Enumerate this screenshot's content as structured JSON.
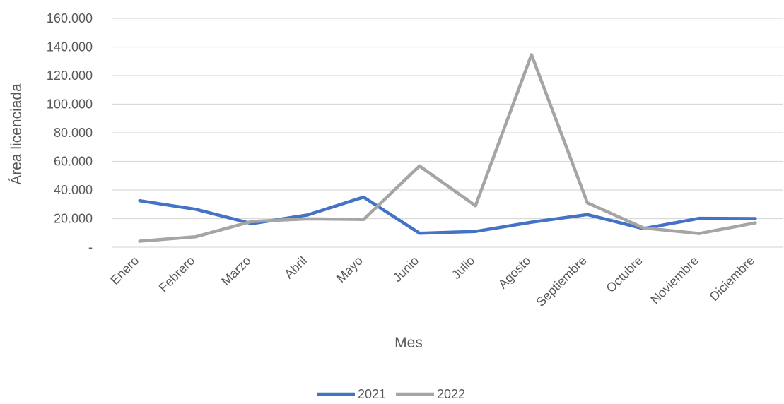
{
  "chart_data": {
    "type": "line",
    "title": "",
    "xlabel": "Mes",
    "ylabel": "Área licenciada",
    "categories": [
      "Enero",
      "Febrero",
      "Marzo",
      "Abril",
      "Mayo",
      "Junio",
      "Julio",
      "Agosto",
      "Septiembre",
      "Octubre",
      "Noviembre",
      "Diciembre"
    ],
    "y_ticks": [
      0,
      20000,
      40000,
      60000,
      80000,
      100000,
      120000,
      140000,
      160000
    ],
    "y_tick_labels": [
      "-",
      "20.000",
      "40.000",
      "60.000",
      "80.000",
      "100.000",
      "120.000",
      "140.000",
      "160.000"
    ],
    "ylim": [
      0,
      160000
    ],
    "grid": true,
    "legend_position": "bottom",
    "series": [
      {
        "name": "2021",
        "color": "#4472C4",
        "values": [
          32500,
          26500,
          16500,
          22500,
          35000,
          9800,
          11000,
          17500,
          22800,
          13000,
          20200,
          20000
        ]
      },
      {
        "name": "2022",
        "color": "#A5A5A5",
        "values": [
          4200,
          7300,
          18000,
          19800,
          19400,
          56800,
          29000,
          134600,
          31000,
          13500,
          9600,
          17000
        ]
      }
    ]
  }
}
